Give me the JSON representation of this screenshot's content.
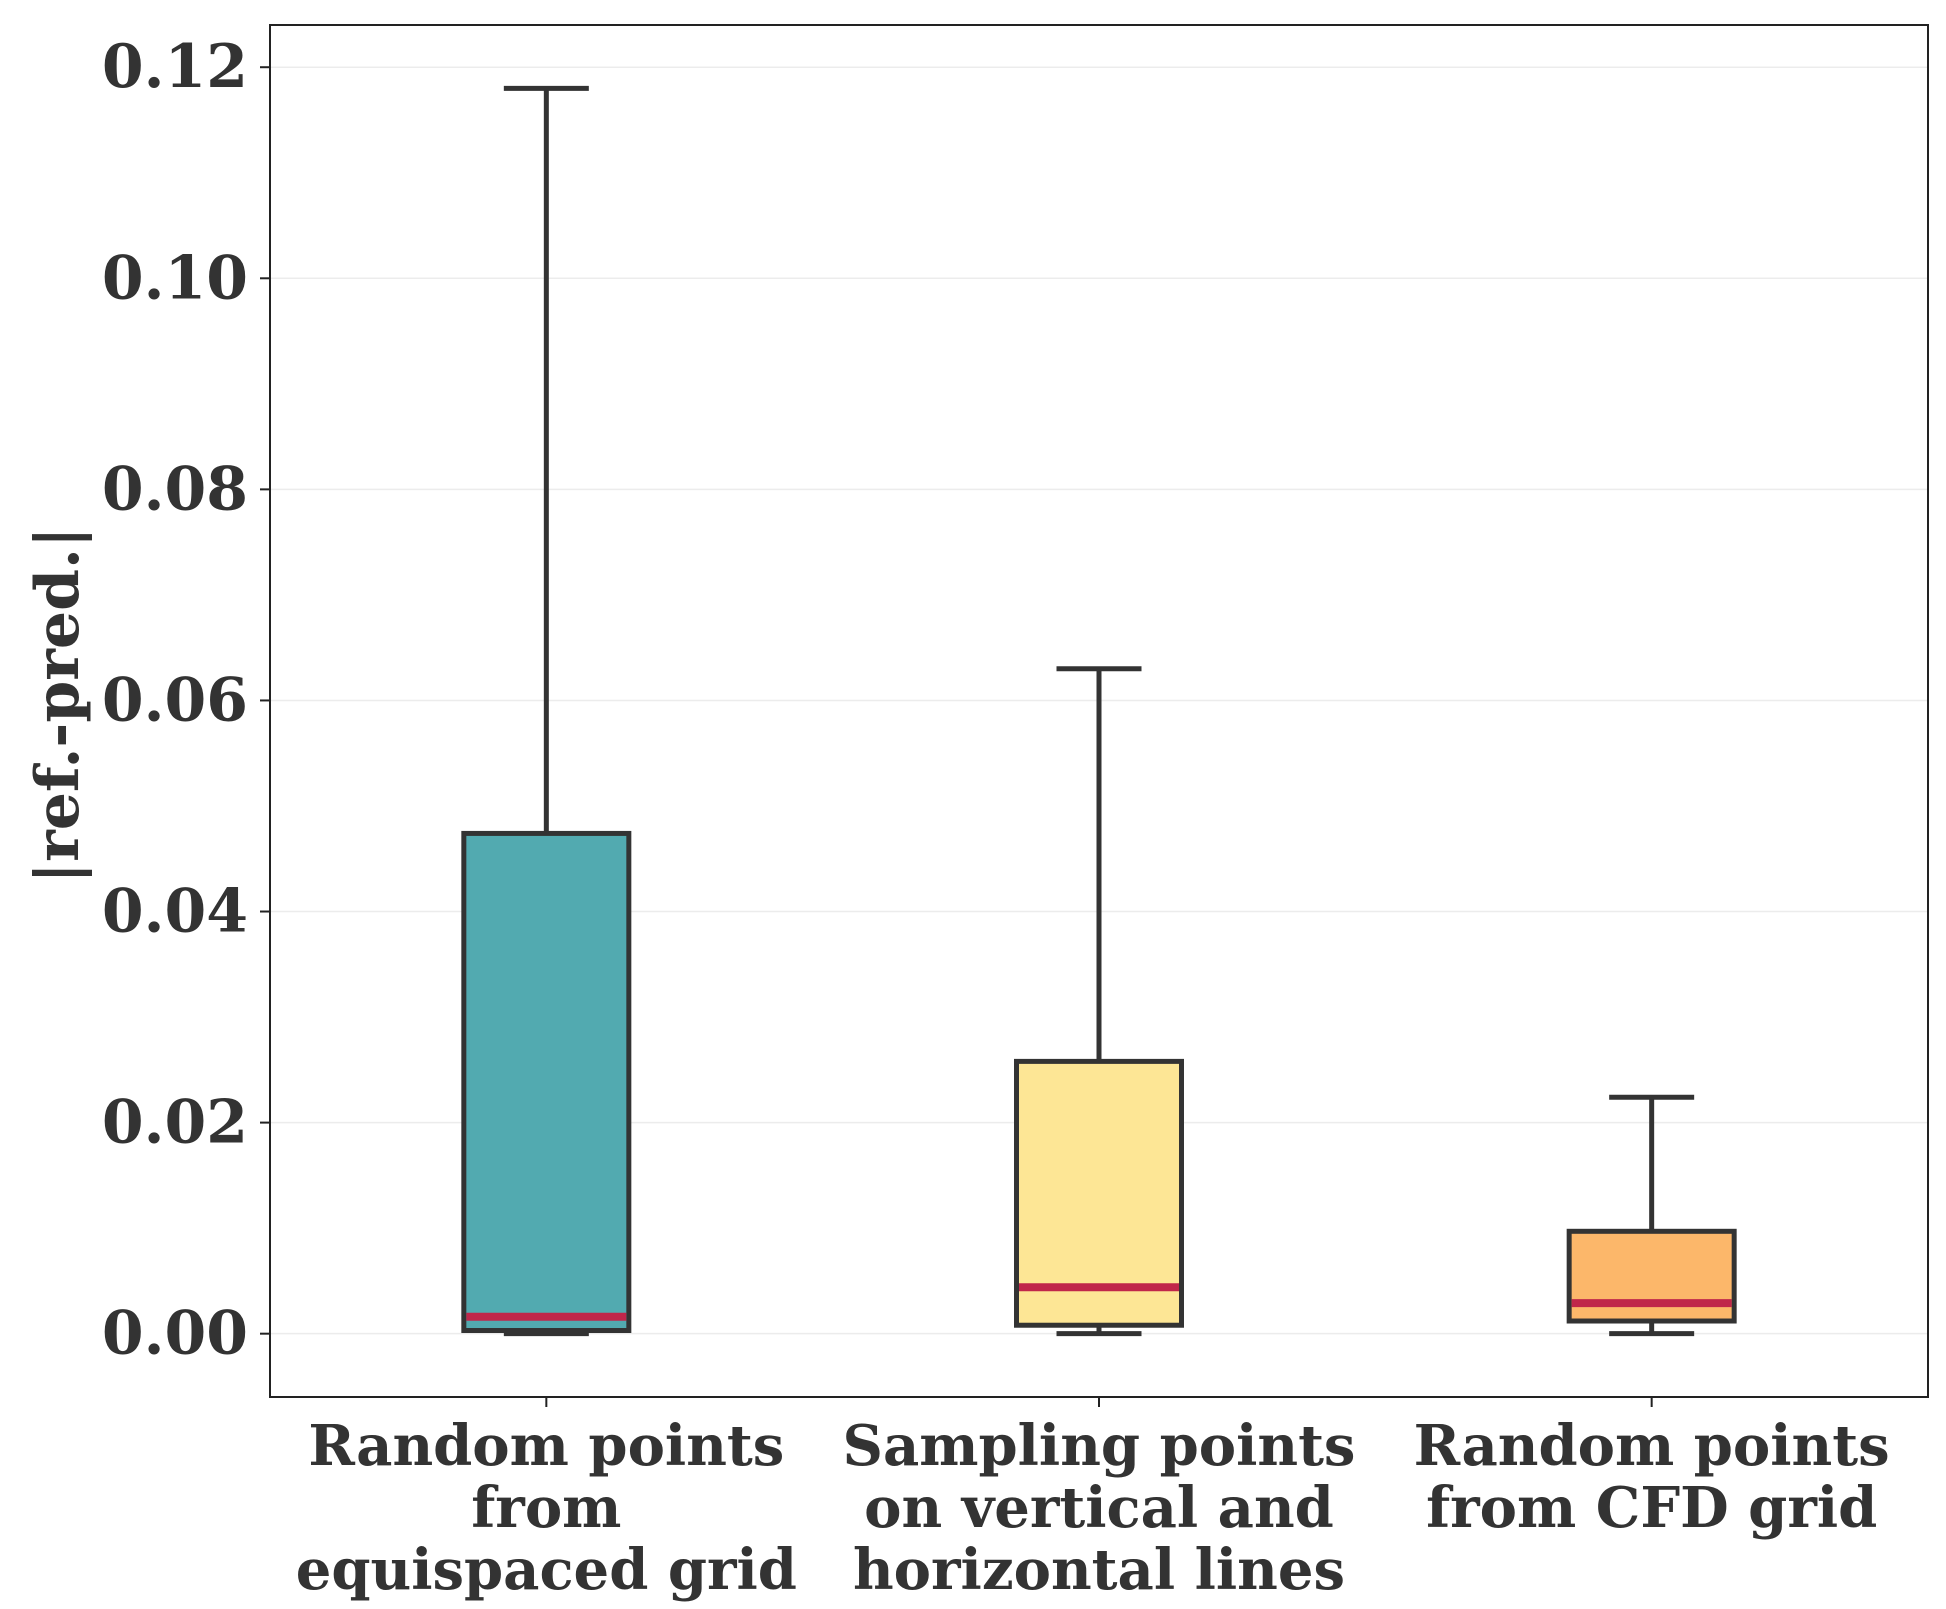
{
  "chart_data": {
    "type": "box",
    "title": "",
    "xlabel": "",
    "ylabel": "|ref.-pred.|",
    "ylim": [
      -0.006,
      0.124
    ],
    "yticks": [
      "0.00",
      "0.02",
      "0.04",
      "0.06",
      "0.08",
      "0.10",
      "0.12"
    ],
    "grid": true,
    "categories": [
      [
        "Random points",
        "from",
        "equispaced grid"
      ],
      [
        "Sampling points",
        "on vertical and",
        "horizontal lines"
      ],
      [
        "Random points",
        "from CFD grid"
      ]
    ],
    "boxes": [
      {
        "whisker_low": 0.0,
        "q1": 0.0003,
        "median": 0.0016,
        "q3": 0.0474,
        "whisker_high": 0.118,
        "color": "#52AAB0"
      },
      {
        "whisker_low": 0.0,
        "q1": 0.0008,
        "median": 0.0044,
        "q3": 0.0258,
        "whisker_high": 0.063,
        "color": "#FDE695"
      },
      {
        "whisker_low": 0.0,
        "q1": 0.0012,
        "median": 0.0029,
        "q3": 0.0097,
        "whisker_high": 0.0224,
        "color": "#FCB76A"
      }
    ],
    "median_color": "#C0264A",
    "edge_color": "#333333"
  }
}
